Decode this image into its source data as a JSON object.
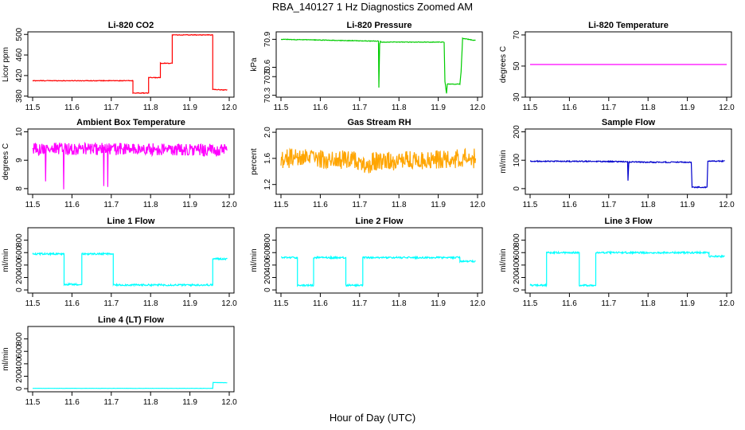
{
  "figure": {
    "title": "RBA_140127  1 Hz Diagnostics Zoomed AM",
    "xlabel": "Hour of Day (UTC)"
  },
  "chart_data": [
    {
      "type": "line",
      "title": "Li-820 CO2",
      "ylabel": "Licor ppm",
      "color": "#ff0000",
      "xlim": [
        11.5,
        12.0
      ],
      "xticks": [
        11.5,
        11.6,
        11.7,
        11.8,
        11.9,
        12.0
      ],
      "ylim": [
        378,
        505
      ],
      "yticks": [
        380,
        420,
        460,
        500
      ],
      "noise": 0.6,
      "x": [
        11.5,
        11.755,
        11.755,
        11.795,
        11.795,
        11.825,
        11.825,
        11.855,
        11.855,
        11.958,
        11.958,
        11.99,
        11.995
      ],
      "y": [
        410,
        410,
        386,
        386,
        416,
        416,
        444,
        444,
        499,
        499,
        393,
        392,
        392
      ]
    },
    {
      "type": "line",
      "title": "Li-820 Pressure",
      "ylabel": "kPa",
      "color": "#00cc00",
      "xlim": [
        11.5,
        12.0
      ],
      "xticks": [
        11.5,
        11.6,
        11.7,
        11.8,
        11.9,
        12.0
      ],
      "ylim": [
        70.28,
        70.98
      ],
      "yticks": [
        70.3,
        70.5,
        70.6,
        70.9
      ],
      "noise": 0.003,
      "x": [
        11.5,
        11.748,
        11.749,
        11.751,
        11.753,
        11.755,
        11.915,
        11.917,
        11.921,
        11.923,
        11.955,
        11.958,
        11.962,
        11.99,
        11.995
      ],
      "y": [
        70.9,
        70.88,
        70.38,
        70.85,
        70.88,
        70.87,
        70.87,
        70.45,
        70.32,
        70.42,
        70.42,
        70.55,
        70.91,
        70.89,
        70.89
      ]
    },
    {
      "type": "line",
      "title": "Li-820 Temperature",
      "ylabel": "degrees C",
      "color": "#ff00ff",
      "xlim": [
        11.5,
        12.0
      ],
      "xticks": [
        11.5,
        11.6,
        11.7,
        11.8,
        11.9,
        12.0
      ],
      "ylim": [
        30,
        72
      ],
      "yticks": [
        30,
        50,
        70
      ],
      "noise": 0,
      "x": [
        11.5,
        12.0
      ],
      "y": [
        51,
        51
      ]
    },
    {
      "type": "line",
      "title": "Ambient Box Temperature",
      "ylabel": "degrees C",
      "color": "#ff00ff",
      "xlim": [
        11.5,
        12.0
      ],
      "xticks": [
        11.5,
        11.6,
        11.7,
        11.8,
        11.9,
        12.0
      ],
      "ylim": [
        7.8,
        10.1
      ],
      "yticks": [
        8.0,
        9.0,
        10.0
      ],
      "noise": 0.22,
      "x": [
        11.5,
        11.532,
        11.533,
        11.534,
        11.578,
        11.579,
        11.58,
        11.68,
        11.681,
        11.682,
        11.69,
        11.691,
        11.692,
        11.995
      ],
      "y": [
        9.4,
        9.4,
        8.3,
        9.4,
        9.4,
        8.1,
        9.4,
        9.4,
        7.9,
        9.4,
        9.4,
        8.0,
        9.4,
        9.35
      ]
    },
    {
      "type": "line",
      "title": "Gas Stream RH",
      "ylabel": "percent",
      "color": "#ffa500",
      "xlim": [
        11.5,
        12.0
      ],
      "xticks": [
        11.5,
        11.6,
        11.7,
        11.8,
        11.9,
        12.0
      ],
      "ylim": [
        1.05,
        2.05
      ],
      "yticks": [
        1.2,
        1.6,
        2.0
      ],
      "noise": 0.15,
      "x": [
        11.5,
        11.7,
        11.71,
        11.72,
        11.73,
        11.995
      ],
      "y": [
        1.6,
        1.58,
        1.5,
        1.45,
        1.55,
        1.6
      ]
    },
    {
      "type": "line",
      "title": "Sample Flow",
      "ylabel": "ml/min",
      "color": "#0000cc",
      "xlim": [
        11.5,
        12.0
      ],
      "xticks": [
        11.5,
        11.6,
        11.7,
        11.8,
        11.9,
        12.0
      ],
      "ylim": [
        -20,
        210
      ],
      "yticks": [
        0,
        100,
        200
      ],
      "noise": 2,
      "x": [
        11.5,
        11.748,
        11.749,
        11.751,
        11.753,
        11.8,
        11.91,
        11.912,
        11.95,
        11.952,
        11.96,
        11.995
      ],
      "y": [
        97,
        95,
        28,
        90,
        94,
        93,
        93,
        5,
        5,
        98,
        97,
        97
      ]
    },
    {
      "type": "line",
      "title": "Line 1 Flow",
      "ylabel": "ml/min",
      "color": "#00ffff",
      "xlim": [
        11.5,
        12.0
      ],
      "xticks": [
        11.5,
        11.6,
        11.7,
        11.8,
        11.9,
        12.0
      ],
      "ylim": [
        -50,
        1000
      ],
      "yticks": [
        0,
        200,
        400,
        600,
        800
      ],
      "noise": 14,
      "x": [
        11.5,
        11.58,
        11.58,
        11.625,
        11.625,
        11.705,
        11.705,
        11.958,
        11.958,
        11.995
      ],
      "y": [
        580,
        580,
        90,
        90,
        580,
        580,
        80,
        80,
        500,
        500
      ]
    },
    {
      "type": "line",
      "title": "Line 2 Flow",
      "ylabel": "ml/min",
      "color": "#00ffff",
      "xlim": [
        11.5,
        12.0
      ],
      "xticks": [
        11.5,
        11.6,
        11.7,
        11.8,
        11.9,
        12.0
      ],
      "ylim": [
        -50,
        1000
      ],
      "yticks": [
        0,
        200,
        400,
        600,
        800
      ],
      "noise": 14,
      "x": [
        11.5,
        11.542,
        11.542,
        11.583,
        11.583,
        11.665,
        11.665,
        11.708,
        11.708,
        11.955,
        11.955,
        11.995
      ],
      "y": [
        520,
        520,
        75,
        75,
        520,
        520,
        75,
        75,
        520,
        520,
        460,
        460
      ]
    },
    {
      "type": "line",
      "title": "Line 3 Flow",
      "ylabel": "ml/min",
      "color": "#00ffff",
      "xlim": [
        11.5,
        12.0
      ],
      "xticks": [
        11.5,
        11.6,
        11.7,
        11.8,
        11.9,
        12.0
      ],
      "ylim": [
        -50,
        1000
      ],
      "yticks": [
        0,
        200,
        400,
        600,
        800
      ],
      "noise": 14,
      "x": [
        11.5,
        11.542,
        11.542,
        11.625,
        11.625,
        11.667,
        11.667,
        11.955,
        11.955,
        11.995
      ],
      "y": [
        75,
        75,
        600,
        600,
        75,
        75,
        600,
        600,
        540,
        540
      ]
    },
    {
      "type": "line",
      "title": "Line 4 (LT) Flow",
      "ylabel": "ml/min",
      "color": "#00ffff",
      "xlim": [
        11.5,
        12.0
      ],
      "xticks": [
        11.5,
        11.6,
        11.7,
        11.8,
        11.9,
        12.0
      ],
      "ylim": [
        -50,
        1000
      ],
      "yticks": [
        0,
        200,
        400,
        600,
        800
      ],
      "noise": 1.5,
      "x": [
        11.5,
        11.958,
        11.959,
        11.995
      ],
      "y": [
        5,
        5,
        100,
        95
      ]
    }
  ]
}
